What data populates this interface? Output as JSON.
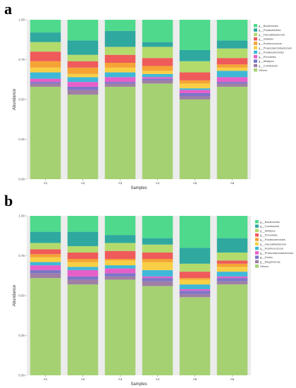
{
  "chart_data": [
    {
      "panel": "a",
      "type": "bar",
      "stacked": true,
      "title": "",
      "xlabel": "Samples",
      "ylabel": "Abundance",
      "ylim": [
        0,
        1
      ],
      "yticks": [
        "0.00",
        "0.25",
        "0.50",
        "0.75",
        "1.00"
      ],
      "categories": [
        "A1",
        "A2",
        "A3",
        "A4",
        "A5",
        "A6"
      ],
      "legend_position": "right",
      "series": [
        {
          "name": "Others",
          "color": "#a6d173",
          "values": [
            0.58,
            0.53,
            0.58,
            0.6,
            0.5,
            0.58
          ]
        },
        {
          "name": "g__Curvibacter",
          "color": "#a07fa5",
          "values": [
            0.02,
            0.03,
            0.02,
            0.02,
            0.02,
            0.02
          ]
        },
        {
          "name": "g__Alistipes",
          "color": "#7b75c9",
          "values": [
            0.01,
            0.02,
            0.01,
            0.01,
            0.02,
            0.01
          ]
        },
        {
          "name": "g__Prevotella",
          "color": "#e65fc9",
          "values": [
            0.02,
            0.03,
            0.03,
            0.01,
            0.02,
            0.03
          ]
        },
        {
          "name": "g__Parabacteroides",
          "color": "#3fb8d8",
          "values": [
            0.04,
            0.03,
            0.03,
            0.02,
            0.01,
            0.04
          ]
        },
        {
          "name": "g__Phascolarctobacterium",
          "color": "#f9cf45",
          "values": [
            0.03,
            0.02,
            0.03,
            0.02,
            0.03,
            0.02
          ]
        },
        {
          "name": "g__Ruminococcus",
          "color": "#f4a334",
          "values": [
            0.04,
            0.04,
            0.03,
            0.03,
            0.02,
            0.02
          ]
        },
        {
          "name": "g__Dialister",
          "color": "#ef5a5a",
          "values": [
            0.06,
            0.04,
            0.05,
            0.05,
            0.05,
            0.04
          ]
        },
        {
          "name": "g__Faecalibacterium",
          "color": "#b3db6c",
          "values": [
            0.06,
            0.04,
            0.05,
            0.07,
            0.07,
            0.06
          ]
        },
        {
          "name": "g__Parasutterella",
          "color": "#2fa8a0",
          "values": [
            0.06,
            0.09,
            0.1,
            0.03,
            0.07,
            0.05
          ]
        },
        {
          "name": "g__Bacteroides",
          "color": "#4fd98c",
          "values": [
            0.08,
            0.13,
            0.07,
            0.14,
            0.19,
            0.13
          ]
        }
      ]
    },
    {
      "panel": "b",
      "type": "bar",
      "stacked": true,
      "title": "",
      "xlabel": "Samples",
      "ylabel": "Abundance",
      "ylim": [
        0,
        1
      ],
      "yticks": [
        "0.00",
        "0.25",
        "0.50",
        "0.75",
        "1.00"
      ],
      "categories": [
        "A1",
        "A2",
        "A3",
        "A4",
        "A5",
        "A6"
      ],
      "legend_position": "right",
      "series": [
        {
          "name": "Others",
          "color": "#a6d173",
          "values": [
            0.61,
            0.57,
            0.6,
            0.56,
            0.49,
            0.57
          ]
        },
        {
          "name": "g__Megamonas",
          "color": "#a07fa5",
          "values": [
            0.03,
            0.03,
            0.02,
            0.03,
            0.02,
            0.02
          ]
        },
        {
          "name": "g__Dorea",
          "color": "#7b75c9",
          "values": [
            0.02,
            0.02,
            0.02,
            0.02,
            0.02,
            0.02
          ]
        },
        {
          "name": "g__Phascolarctobacterium",
          "color": "#e65fc9",
          "values": [
            0.03,
            0.04,
            0.03,
            0.01,
            0.01,
            0.01
          ]
        },
        {
          "name": "g__Ruminococcus",
          "color": "#3fb8d8",
          "values": [
            0.02,
            0.02,
            0.02,
            0.04,
            0.03,
            0.03
          ]
        },
        {
          "name": "g__Faecalibacterium",
          "color": "#f9cf45",
          "values": [
            0.03,
            0.03,
            0.03,
            0.05,
            0.03,
            0.03
          ]
        },
        {
          "name": "g__Parabacteroides",
          "color": "#f4a334",
          "values": [
            0.02,
            0.02,
            0.01,
            0.02,
            0.01,
            0.02
          ]
        },
        {
          "name": "g__Prevotella",
          "color": "#ef5a5a",
          "values": [
            0.03,
            0.04,
            0.05,
            0.04,
            0.04,
            0.02
          ]
        },
        {
          "name": "g__Alistipes",
          "color": "#b3db6c",
          "values": [
            0.04,
            0.04,
            0.05,
            0.05,
            0.05,
            0.05
          ]
        },
        {
          "name": "g__Curvibacter",
          "color": "#2fa8a0",
          "values": [
            0.07,
            0.09,
            0.05,
            0.04,
            0.1,
            0.09
          ]
        },
        {
          "name": "g__Bacteroides",
          "color": "#4fd98c",
          "values": [
            0.1,
            0.1,
            0.12,
            0.14,
            0.2,
            0.14
          ]
        }
      ]
    }
  ]
}
